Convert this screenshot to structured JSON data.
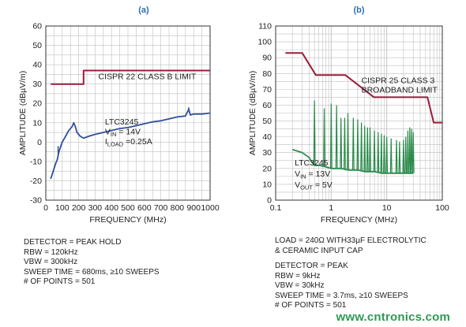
{
  "chart_data": [
    {
      "type": "line",
      "panel_label": "(a)",
      "xlabel": "FREQUENCY (MHz)",
      "ylabel": "AMPLITUDE (dBµV/m)",
      "xscale": "linear",
      "xlim": [
        0,
        1000
      ],
      "ylim": [
        -30,
        60
      ],
      "xticks": [
        0,
        100,
        200,
        300,
        400,
        500,
        600,
        700,
        800,
        900,
        1000
      ],
      "yticks": [
        -30,
        -20,
        -10,
        0,
        10,
        20,
        30,
        40,
        50,
        60
      ],
      "grid": true,
      "series": [
        {
          "name": "CISPR 22 CLASS B LIMIT",
          "color": "#9b1c3c",
          "x": [
            30,
            230,
            230,
            1000
          ],
          "y": [
            30,
            30,
            37,
            37
          ]
        },
        {
          "color": "#2e4f9c",
          "x": [
            30,
            45,
            60,
            70,
            80,
            100,
            120,
            140,
            160,
            170,
            180,
            190,
            200,
            210,
            230,
            260,
            300,
            350,
            400,
            450,
            500,
            550,
            600,
            650,
            700,
            750,
            800,
            850,
            870,
            880,
            900,
            950,
            1000
          ],
          "y": [
            -19,
            -15,
            -11,
            -9,
            -5,
            0,
            3,
            6,
            8,
            10,
            8,
            5,
            4,
            3,
            2,
            3,
            4,
            5,
            6,
            7,
            7.5,
            8.5,
            9.5,
            10.5,
            11,
            12,
            13,
            13.5,
            17,
            14,
            14.5,
            14.5,
            15
          ],
          "spikes": [
            {
              "x": 75,
              "y": -2
            },
            {
              "x": 870,
              "y": 18
            }
          ]
        }
      ],
      "annotations": [
        {
          "text": "CISPR 22 CLASS B LIMIT",
          "x": 320,
          "y": 32.5
        },
        {
          "text": "LTC3245",
          "x": 360,
          "y": 9
        },
        {
          "text": "V_IN = 14V",
          "x": 360,
          "y": 4
        },
        {
          "text": "I_LOAD =0.25A",
          "x": 360,
          "y": -1
        }
      ],
      "notes": [
        "DETECTOR = PEAK HOLD",
        "RBW = 120kHz",
        "VBW = 300kHz",
        "SWEEP TIME = 680ms, ≥10 SWEEPS",
        "# OF POINTS = 501"
      ]
    },
    {
      "type": "line",
      "panel_label": "(b)",
      "xlabel": "FREQUENCY (MHz)",
      "ylabel": "AMPLITUDE (dBµV/m)",
      "xscale": "log",
      "xlim": [
        0.1,
        100
      ],
      "ylim": [
        0,
        110
      ],
      "xticks": [
        0.1,
        1,
        10,
        100
      ],
      "xtick_labels": [
        "0.1",
        "1",
        "10",
        "100"
      ],
      "yticks": [
        0,
        10,
        20,
        30,
        40,
        50,
        60,
        70,
        80,
        90,
        100,
        110
      ],
      "grid": true,
      "series": [
        {
          "name": "CISPR 25 CLASS 3 BROADBAND LIMIT",
          "color": "#9b1c3c",
          "x": [
            0.15,
            0.3,
            0.53,
            1.8,
            5.9,
            54,
            70,
            100
          ],
          "y": [
            93,
            93,
            79,
            79,
            65,
            65,
            49,
            49
          ]
        },
        {
          "color": "#2a8a4a",
          "x": [
            0.2,
            0.3,
            0.4,
            0.45,
            0.5,
            0.6,
            0.8,
            1.0,
            1.2,
            1.5,
            2.0,
            2.5,
            3.0,
            4.0,
            5.0,
            6.0,
            8.0,
            10,
            12,
            15,
            18,
            22,
            26,
            30
          ],
          "y": [
            32,
            30,
            27,
            24,
            22,
            22,
            21,
            20,
            20,
            20,
            19,
            19,
            19,
            18,
            18,
            18,
            17,
            17,
            17,
            17,
            17,
            17,
            17,
            17
          ],
          "peaks": [
            {
              "x": 0.5,
              "y": 63
            },
            {
              "x": 0.75,
              "y": 58
            },
            {
              "x": 1.0,
              "y": 61
            },
            {
              "x": 1.25,
              "y": 60
            },
            {
              "x": 1.5,
              "y": 52
            },
            {
              "x": 1.75,
              "y": 52
            },
            {
              "x": 2.0,
              "y": 55
            },
            {
              "x": 2.5,
              "y": 52
            },
            {
              "x": 3.0,
              "y": 51
            },
            {
              "x": 3.5,
              "y": 49
            },
            {
              "x": 4.0,
              "y": 47
            },
            {
              "x": 4.5,
              "y": 46
            },
            {
              "x": 5.0,
              "y": 46
            },
            {
              "x": 6.0,
              "y": 44
            },
            {
              "x": 7.0,
              "y": 43
            },
            {
              "x": 8.0,
              "y": 42
            },
            {
              "x": 9.0,
              "y": 41
            },
            {
              "x": 10,
              "y": 40
            },
            {
              "x": 12,
              "y": 39
            },
            {
              "x": 15,
              "y": 38
            },
            {
              "x": 17,
              "y": 37
            },
            {
              "x": 20,
              "y": 38
            },
            {
              "x": 22,
              "y": 40
            },
            {
              "x": 24,
              "y": 44
            },
            {
              "x": 26,
              "y": 46
            },
            {
              "x": 28,
              "y": 45
            },
            {
              "x": 30,
              "y": 43
            }
          ]
        }
      ],
      "annotations": [
        {
          "text": "CISPR 25 CLASS 3",
          "x": 3.5,
          "y": 74
        },
        {
          "text": "BROADBAND LIMIT",
          "x": 3.5,
          "y": 68
        },
        {
          "text": "LTC3245",
          "x": 0.22,
          "y": 22
        },
        {
          "text": "V_IN = 13V",
          "x": 0.22,
          "y": 15
        },
        {
          "text": "V_OUT = 5V",
          "x": 0.22,
          "y": 8
        }
      ],
      "notes": [
        "LOAD = 240Ω WITH33µF ELECTROLYTIC",
        "& CERAMIC INPUT CAP",
        "",
        "DETECTOR = PEAK",
        "RBW = 9kHz",
        "VBW = 30kHz",
        "SWEEP TIME = 3.7ms, ≥10 SWEEPS",
        "# OF POINTS = 501"
      ]
    }
  ],
  "watermark": "www.cntronics.com",
  "colors": {
    "grid": "#bfbfbf",
    "axis": "#333333",
    "panel_label": "#2f6db5"
  }
}
